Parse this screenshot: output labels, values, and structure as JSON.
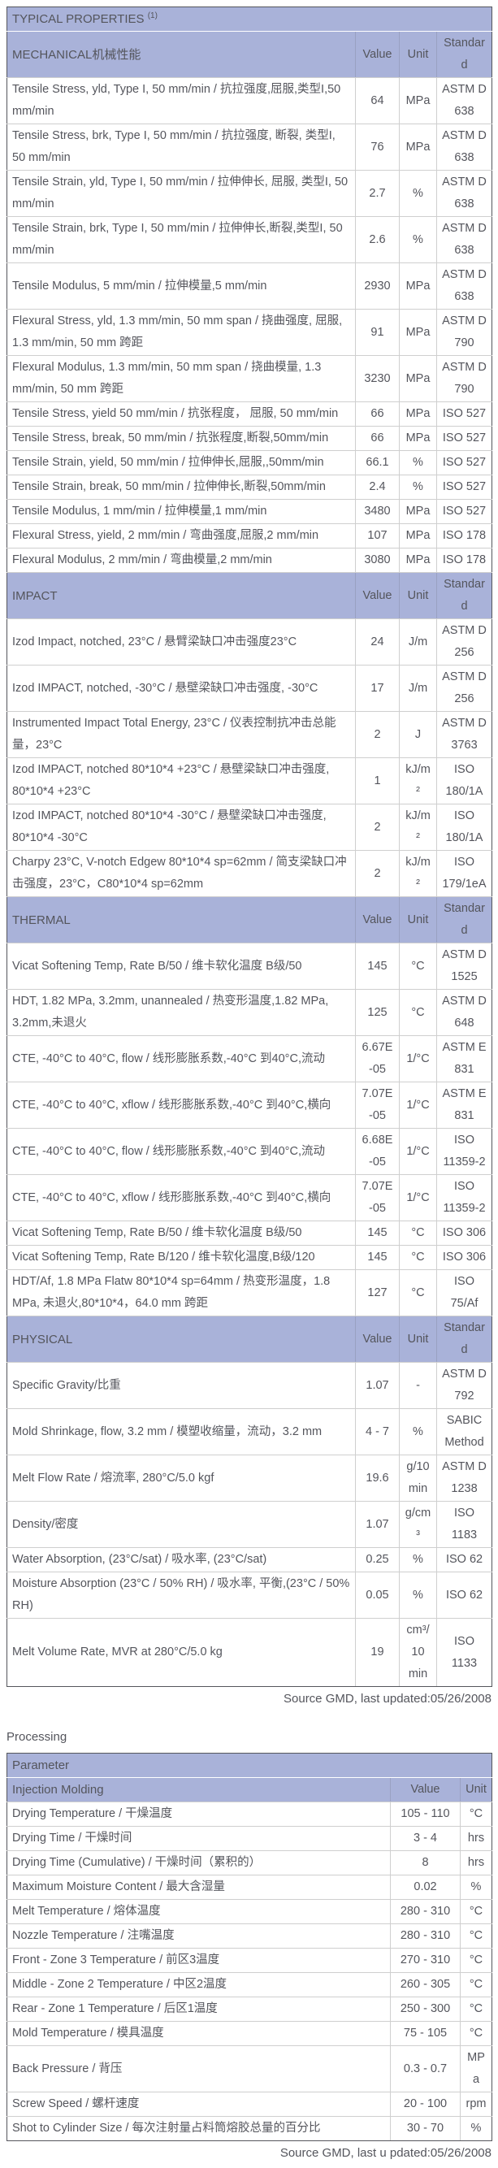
{
  "colors": {
    "header_band": "#a9b2d9",
    "text": "#54555c",
    "inner_border": "#cfcfcf",
    "outer_border": "#55565c",
    "background": "#ffffff"
  },
  "typical_properties": {
    "title": "TYPICAL PROPERTIES ",
    "title_superscript": "(1)",
    "columns": [
      "Value",
      "Unit",
      "Standard"
    ],
    "sections": [
      {
        "name": "MECHANICAL机械性能",
        "rows": [
          {
            "property": "Tensile Stress, yld, Type I, 50 mm/min / 抗拉强度,屈服,类型I,50 mm/min",
            "value": "64",
            "unit": "MPa",
            "standard": "ASTM D 638"
          },
          {
            "property": "Tensile Stress, brk, Type I, 50 mm/min / 抗拉强度, 断裂, 类型I, 50 mm/min",
            "value": "76",
            "unit": "MPa",
            "standard": "ASTM D 638"
          },
          {
            "property": "Tensile Strain, yld, Type I, 50 mm/min / 拉伸伸长, 屈服, 类型I, 50 mm/min",
            "value": "2.7",
            "unit": "%",
            "standard": "ASTM D 638"
          },
          {
            "property": "Tensile Strain, brk, Type I, 50 mm/min / 拉伸伸长,断裂,类型I, 50 mm/min",
            "value": "2.6",
            "unit": "%",
            "standard": "ASTM D 638"
          },
          {
            "property": "Tensile Modulus, 5 mm/min / 拉伸模量,5 mm/min",
            "value": "2930",
            "unit": "MPa",
            "standard": "ASTM D 638"
          },
          {
            "property": "Flexural Stress, yld, 1.3 mm/min, 50 mm span / 挠曲强度, 屈服, 1.3 mm/min, 50 mm 跨距",
            "value": "91",
            "unit": "MPa",
            "standard": "ASTM D 790"
          },
          {
            "property": "Flexural Modulus, 1.3 mm/min, 50 mm span / 挠曲模量, 1.3 mm/min, 50 mm 跨距",
            "value": "3230",
            "unit": "MPa",
            "standard": "ASTM D 790"
          },
          {
            "property": "Tensile Stress, yield 50 mm/min / 抗张程度， 屈服, 50 mm/min",
            "value": "66",
            "unit": "MPa",
            "standard": "ISO 527"
          },
          {
            "property": "Tensile Stress, break, 50 mm/min / 抗张程度,断裂,50mm/min",
            "value": "66",
            "unit": "MPa",
            "standard": "ISO 527"
          },
          {
            "property": "Tensile Strain, yield, 50 mm/min / 拉伸伸长,屈服,,50mm/min",
            "value": "66.1",
            "unit": "%",
            "standard": "ISO 527"
          },
          {
            "property": "Tensile Strain, break, 50 mm/min / 拉伸伸长,断裂,50mm/min",
            "value": "2.4",
            "unit": "%",
            "standard": "ISO 527"
          },
          {
            "property": "Tensile Modulus, 1 mm/min / 拉伸模量,1 mm/min",
            "value": "3480",
            "unit": "MPa",
            "standard": "ISO 527"
          },
          {
            "property": "Flexural Stress, yield, 2 mm/min / 弯曲强度,屈服,2 mm/min",
            "value": "107",
            "unit": "MPa",
            "standard": "ISO 178"
          },
          {
            "property": "Flexural Modulus, 2 mm/min / 弯曲模量,2 mm/min",
            "value": "3080",
            "unit": "MPa",
            "standard": "ISO 178"
          }
        ]
      },
      {
        "name": "IMPACT",
        "rows": [
          {
            "property": "Izod Impact, notched, 23°C / 悬臂梁缺口冲击强度23°C",
            "value": "24",
            "unit": "J/m",
            "standard": "ASTM D 256"
          },
          {
            "property": "Izod IMPACT, notched, -30°C / 悬壁梁缺口冲击强度, -30°C",
            "value": "17",
            "unit": "J/m",
            "standard": "ASTM D 256"
          },
          {
            "property": "Instrumented Impact Total Energy, 23°C / 仪表控制抗冲击总能量，23°C",
            "value": "2",
            "unit": "J",
            "standard": "ASTM D 3763"
          },
          {
            "property": "Izod IMPACT, notched 80*10*4 +23°C / 悬壁梁缺口冲击强度, 80*10*4 +23°C",
            "value": "1",
            "unit": "kJ/m²",
            "standard": "ISO 180/1A"
          },
          {
            "property": "Izod IMPACT, notched 80*10*4 -30°C / 悬壁梁缺口冲击强度, 80*10*4 -30°C",
            "value": "2",
            "unit": "kJ/m²",
            "standard": "ISO 180/1A"
          },
          {
            "property": "Charpy 23°C, V-notch Edgew 80*10*4 sp=62mm / 简支梁缺口冲击强度，23°C，C80*10*4 sp=62mm",
            "value": "2",
            "unit": "kJ/m²",
            "standard": "ISO 179/1eA"
          }
        ]
      },
      {
        "name": "THERMAL",
        "rows": [
          {
            "property": "Vicat Softening Temp, Rate B/50 / 维卡软化温度 B级/50",
            "value": "145",
            "unit": "°C",
            "standard": "ASTM D 1525"
          },
          {
            "property": "HDT, 1.82 MPa, 3.2mm, unannealed / 热变形温度,1.82 MPa, 3.2mm,未退火",
            "value": "125",
            "unit": "°C",
            "standard": "ASTM D 648"
          },
          {
            "property": "CTE, -40°C to 40°C, flow / 线形膨胀系数,-40°C 到40°C,流动",
            "value": "6.67E-05",
            "unit": "1/°C",
            "standard": "ASTM E 831"
          },
          {
            "property": "CTE, -40°C to 40°C, xflow / 线形膨胀系数,-40°C 到40°C,横向",
            "value": "7.07E-05",
            "unit": "1/°C",
            "standard": "ASTM E 831"
          },
          {
            "property": "CTE, -40°C to 40°C, flow / 线形膨胀系数,-40°C 到40°C,流动",
            "value": "6.68E-05",
            "unit": "1/°C",
            "standard": "ISO 11359-2"
          },
          {
            "property": "CTE, -40°C to 40°C, xflow / 线形膨胀系数,-40°C 到40°C,横向",
            "value": "7.07E-05",
            "unit": "1/°C",
            "standard": "ISO 11359-2"
          },
          {
            "property": "Vicat Softening Temp, Rate B/50 / 维卡软化温度 B级/50",
            "value": "145",
            "unit": "°C",
            "standard": "ISO 306"
          },
          {
            "property": "Vicat Softening Temp, Rate B/120 / 维卡软化温度,B级/120",
            "value": "145",
            "unit": "°C",
            "standard": "ISO 306"
          },
          {
            "property": "HDT/Af, 1.8 MPa Flatw 80*10*4 sp=64mm / 热变形温度，1.8 MPa, 未退火,80*10*4，64.0 mm 跨距",
            "value": "127",
            "unit": "°C",
            "standard": "ISO 75/Af"
          }
        ]
      },
      {
        "name": "PHYSICAL",
        "rows": [
          {
            "property": "Specific Gravity/比重",
            "value": "1.07",
            "unit": "-",
            "standard": "ASTM D 792"
          },
          {
            "property": "Mold Shrinkage, flow, 3.2 mm / 模塑收缩量，流动，3.2 mm",
            "value": "4 - 7",
            "unit": "%",
            "standard": "SABIC Method"
          },
          {
            "property": "Melt Flow Rate / 熔流率, 280°C/5.0 kgf",
            "value": "19.6",
            "unit": "g/10 min",
            "standard": "ASTM D 1238"
          },
          {
            "property": "Density/密度",
            "value": "1.07",
            "unit": "g/cm³",
            "standard": "ISO 1183"
          },
          {
            "property": "Water Absorption, (23°C/sat) / 吸水率, (23°C/sat)",
            "value": "0.25",
            "unit": "%",
            "standard": "ISO 62"
          },
          {
            "property": "Moisture Absorption (23°C / 50% RH) / 吸水率, 平衡,(23°C / 50% RH)",
            "value": "0.05",
            "unit": "%",
            "standard": "ISO 62"
          },
          {
            "property": "Melt Volume Rate, MVR at 280°C/5.0 kg",
            "value": "19",
            "unit": "cm³/10 min",
            "standard": "ISO 1133"
          }
        ]
      }
    ],
    "source_note": "Source GMD, last updated:05/26/2008"
  },
  "processing": {
    "heading": "Processing",
    "table_title": "Parameter",
    "subheader_label": "Injection Molding",
    "columns": [
      "Value",
      "Unit"
    ],
    "rows": [
      {
        "parameter": "Drying Temperature / 干燥温度",
        "value": "105 - 110",
        "unit": "°C"
      },
      {
        "parameter": "Drying Time / 干燥时间",
        "value": "3 - 4",
        "unit": "hrs"
      },
      {
        "parameter": "Drying Time (Cumulative) / 干燥时间（累积的）",
        "value": "8",
        "unit": "hrs"
      },
      {
        "parameter": "Maximum Moisture Content / 最大含湿量",
        "value": "0.02",
        "unit": "%"
      },
      {
        "parameter": "Melt Temperature / 熔体温度",
        "value": "280 - 310",
        "unit": "°C"
      },
      {
        "parameter": "Nozzle Temperature / 注嘴温度",
        "value": "280 - 310",
        "unit": "°C"
      },
      {
        "parameter": "Front - Zone 3 Temperature / 前区3温度",
        "value": "270 - 310",
        "unit": "°C"
      },
      {
        "parameter": "Middle - Zone 2 Temperature / 中区2温度",
        "value": "260 - 305",
        "unit": "°C"
      },
      {
        "parameter": "Rear - Zone 1 Temperature / 后区1温度",
        "value": "250 - 300",
        "unit": "°C"
      },
      {
        "parameter": "Mold Temperature / 模具温度",
        "value": "75 - 105",
        "unit": "°C"
      },
      {
        "parameter": "Back Pressure / 背压",
        "value": "0.3 - 0.7",
        "unit": "MPa"
      },
      {
        "parameter": "Screw Speed / 螺杆速度",
        "value": "20 - 100",
        "unit": "rpm"
      },
      {
        "parameter": "Shot to Cylinder Size / 每次注射量占料筒熔胶总量的百分比",
        "value": "30 - 70",
        "unit": "%"
      }
    ],
    "source_note": "Source GMD, last u pdated:05/26/2008"
  }
}
